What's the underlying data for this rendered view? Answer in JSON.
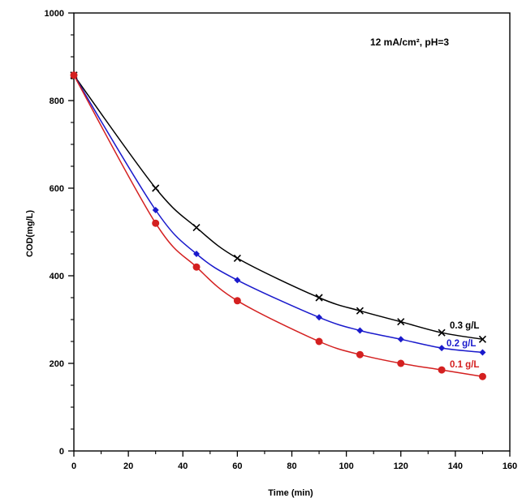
{
  "chart_data": {
    "type": "line",
    "title": "",
    "xlabel": "Time (min)",
    "ylabel": "COD(mg/L)",
    "xlim": [
      0,
      160
    ],
    "ylim": [
      0,
      1000
    ],
    "xticks": [
      0,
      20,
      40,
      60,
      80,
      100,
      120,
      140,
      160
    ],
    "yticks": [
      0,
      200,
      400,
      600,
      800,
      1000
    ],
    "annotation": "12 mA/cm², pH=3",
    "grid": false,
    "series": [
      {
        "name": "0.3 g/L",
        "color": "#000000",
        "marker": "x",
        "x": [
          0,
          30,
          45,
          60,
          90,
          105,
          120,
          135,
          150
        ],
        "y": [
          858,
          600,
          510,
          440,
          350,
          320,
          295,
          270,
          255
        ]
      },
      {
        "name": "0.2 g/L",
        "color": "#1a1acc",
        "marker": "diamond",
        "x": [
          0,
          30,
          45,
          60,
          90,
          105,
          120,
          135,
          150
        ],
        "y": [
          858,
          550,
          450,
          390,
          305,
          275,
          255,
          235,
          225
        ]
      },
      {
        "name": "0.1 g/L",
        "color": "#d42020",
        "marker": "circle",
        "x": [
          0,
          30,
          45,
          60,
          90,
          105,
          120,
          135,
          150
        ],
        "y": [
          858,
          520,
          420,
          343,
          250,
          220,
          200,
          185,
          170
        ]
      }
    ]
  }
}
